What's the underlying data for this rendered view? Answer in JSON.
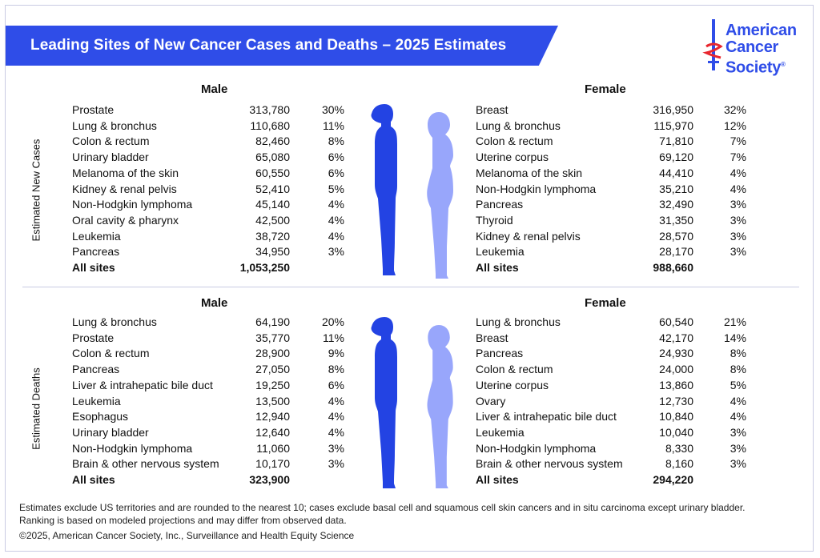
{
  "title": "Leading Sites of New Cancer Cases and Deaths – 2025 Estimates",
  "logo": {
    "line1": "American",
    "line2": "Cancer",
    "line3": "Society",
    "reg": "®"
  },
  "colors": {
    "brand_blue": "#2f4de8",
    "male_figure": "#2343e3",
    "female_figure": "#98a6fb"
  },
  "new_cases": {
    "label": "Estimated New Cases",
    "male": {
      "heading": "Male",
      "rows": [
        {
          "site": "Prostate",
          "count": "313,780",
          "pct": "30%"
        },
        {
          "site": "Lung & bronchus",
          "count": "110,680",
          "pct": "11%"
        },
        {
          "site": "Colon & rectum",
          "count": "82,460",
          "pct": "8%"
        },
        {
          "site": "Urinary bladder",
          "count": "65,080",
          "pct": "6%"
        },
        {
          "site": "Melanoma of the skin",
          "count": "60,550",
          "pct": "6%"
        },
        {
          "site": "Kidney & renal pelvis",
          "count": "52,410",
          "pct": "5%"
        },
        {
          "site": "Non-Hodgkin lymphoma",
          "count": "45,140",
          "pct": "4%"
        },
        {
          "site": "Oral cavity & pharynx",
          "count": "42,500",
          "pct": "4%"
        },
        {
          "site": "Leukemia",
          "count": "38,720",
          "pct": "4%"
        },
        {
          "site": "Pancreas",
          "count": "34,950",
          "pct": "3%"
        }
      ],
      "total": {
        "site": "All sites",
        "count": "1,053,250"
      }
    },
    "female": {
      "heading": "Female",
      "rows": [
        {
          "site": "Breast",
          "count": "316,950",
          "pct": "32%"
        },
        {
          "site": "Lung & bronchus",
          "count": "115,970",
          "pct": "12%"
        },
        {
          "site": "Colon & rectum",
          "count": "71,810",
          "pct": "7%"
        },
        {
          "site": "Uterine corpus",
          "count": "69,120",
          "pct": "7%"
        },
        {
          "site": "Melanoma of the skin",
          "count": "44,410",
          "pct": "4%"
        },
        {
          "site": "Non-Hodgkin lymphoma",
          "count": "35,210",
          "pct": "4%"
        },
        {
          "site": "Pancreas",
          "count": "32,490",
          "pct": "3%"
        },
        {
          "site": "Thyroid",
          "count": "31,350",
          "pct": "3%"
        },
        {
          "site": "Kidney & renal pelvis",
          "count": "28,570",
          "pct": "3%"
        },
        {
          "site": "Leukemia",
          "count": "28,170",
          "pct": "3%"
        }
      ],
      "total": {
        "site": "All sites",
        "count": "988,660"
      }
    }
  },
  "deaths": {
    "label": "Estimated Deaths",
    "male": {
      "heading": "Male",
      "rows": [
        {
          "site": "Lung & bronchus",
          "count": "64,190",
          "pct": "20%"
        },
        {
          "site": "Prostate",
          "count": "35,770",
          "pct": "11%"
        },
        {
          "site": "Colon & rectum",
          "count": "28,900",
          "pct": "9%"
        },
        {
          "site": "Pancreas",
          "count": "27,050",
          "pct": "8%"
        },
        {
          "site": "Liver & intrahepatic bile duct",
          "count": "19,250",
          "pct": "6%"
        },
        {
          "site": "Leukemia",
          "count": "13,500",
          "pct": "4%"
        },
        {
          "site": "Esophagus",
          "count": "12,940",
          "pct": "4%"
        },
        {
          "site": "Urinary bladder",
          "count": "12,640",
          "pct": "4%"
        },
        {
          "site": "Non-Hodgkin lymphoma",
          "count": "11,060",
          "pct": "3%"
        },
        {
          "site": "Brain & other nervous system",
          "count": "10,170",
          "pct": "3%"
        }
      ],
      "total": {
        "site": "All sites",
        "count": "323,900"
      }
    },
    "female": {
      "heading": "Female",
      "rows": [
        {
          "site": "Lung & bronchus",
          "count": "60,540",
          "pct": "21%"
        },
        {
          "site": "Breast",
          "count": "42,170",
          "pct": "14%"
        },
        {
          "site": "Pancreas",
          "count": "24,930",
          "pct": "8%"
        },
        {
          "site": "Colon & rectum",
          "count": "24,000",
          "pct": "8%"
        },
        {
          "site": "Uterine corpus",
          "count": "13,860",
          "pct": "5%"
        },
        {
          "site": "Ovary",
          "count": "12,730",
          "pct": "4%"
        },
        {
          "site": "Liver & intrahepatic bile duct",
          "count": "10,840",
          "pct": "4%"
        },
        {
          "site": "Leukemia",
          "count": "10,040",
          "pct": "3%"
        },
        {
          "site": "Non-Hodgkin lymphoma",
          "count": "8,330",
          "pct": "3%"
        },
        {
          "site": "Brain & other nervous system",
          "count": "8,160",
          "pct": "3%"
        }
      ],
      "total": {
        "site": "All sites",
        "count": "294,220"
      }
    }
  },
  "footnote": {
    "line1": "Estimates exclude US territories and are rounded to the nearest 10; cases exclude basal cell and squamous cell skin cancers and in situ carcinoma except urinary bladder.",
    "line2": "Ranking is based on modeled projections and may differ from observed data.",
    "copyright": "©2025, American Cancer Society, Inc., Surveillance and Health Equity Science"
  }
}
